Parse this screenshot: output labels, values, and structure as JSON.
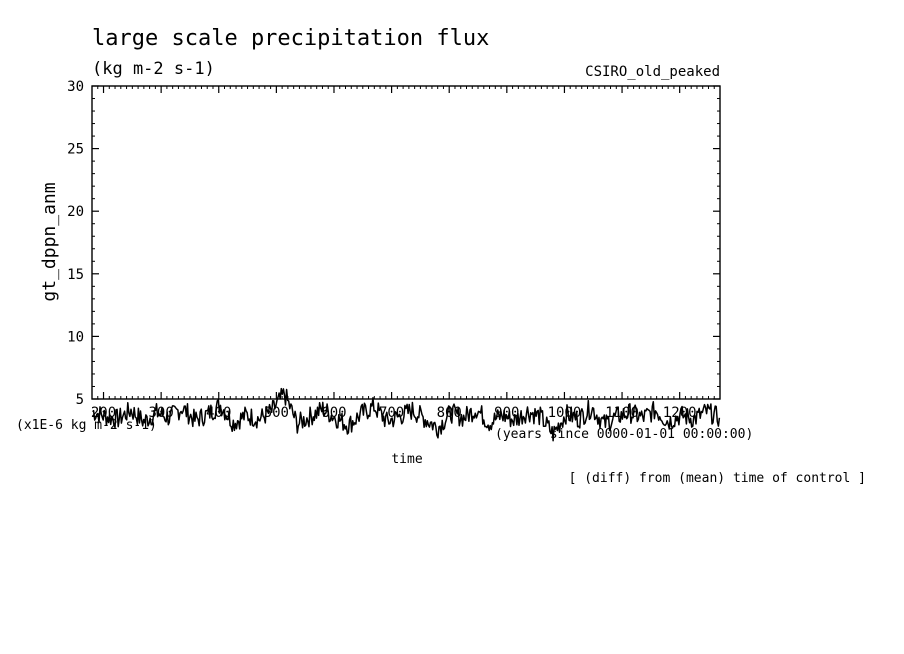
{
  "chart_data": {
    "type": "line",
    "title": "large scale precipitation flux",
    "subtitle": "(kg m-2 s-1)",
    "dataset_label": "CSIRO_old_peaked",
    "ylabel": "gt_dppn_anm",
    "y_unit_note": "(x1E-6 kg m-2 s-1)",
    "xlabel": "time",
    "x_title_note": "(years since 0000-01-01 00:00:00)",
    "footnote": "[ (diff) from (mean) time of control ]",
    "xlim": [
      180,
      1270
    ],
    "ylim": [
      5,
      30
    ],
    "x_ticks": [
      "200",
      "300",
      "400",
      "500",
      "600",
      "700",
      "800",
      "900",
      "1000",
      "1100",
      "1200"
    ],
    "y_ticks": [
      "5",
      "10",
      "15",
      "20",
      "25",
      "30"
    ],
    "grid": false,
    "series": [
      {
        "name": "",
        "x_start": 181,
        "x_end": 1269,
        "base": 3.6,
        "amplitude": 1.0,
        "values": [
          4.0,
          3.6,
          3.4,
          4.1,
          3.2,
          3.9,
          3.5,
          4.3,
          3.3,
          3.8,
          4.5,
          3.1,
          3.7,
          3.4,
          4.0,
          5.4,
          3.0,
          3.6,
          4.2,
          3.5,
          2.9,
          3.8,
          4.4,
          3.2,
          3.6,
          4.1,
          3.4,
          2.7,
          3.9,
          3.5,
          4.2,
          3.1,
          3.7,
          3.3,
          4.0,
          3.6,
          2.2,
          3.8,
          3.4,
          4.3,
          3.0,
          3.6,
          3.9,
          3.5,
          4.1,
          3.2,
          3.7,
          3.4,
          4.0,
          3.5
        ],
        "color": "#000000"
      }
    ]
  }
}
